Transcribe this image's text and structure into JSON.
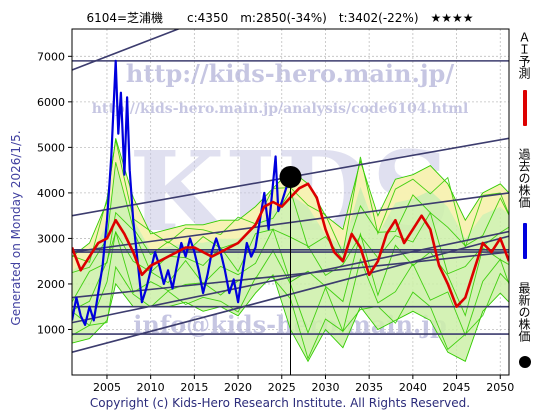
{
  "header": {
    "title": "6104=芝浦機　　c:4350　m:2850(-34%)　t:3402(-22%)　★★★★"
  },
  "footer": {
    "copyright": "Copyright (c) Kids-Hero Research Institute. All Rights Reserved."
  },
  "side": {
    "generated": "Generated on Monday 2026/1/5."
  },
  "legend": [
    {
      "label": "ＡＩ予測",
      "color": "#dd0000"
    },
    {
      "label": "過去の株価",
      "color": "#0000dd"
    },
    {
      "label": "最新の株価",
      "color": "#000000"
    }
  ],
  "watermarks": {
    "main": "http://kids-hero.main.jp/",
    "analysis": "http://kids-hero.main.jp/analysis/code6104.html",
    "mail": "info@kids-hero.main.jp",
    "big": "KIDS"
  },
  "colors": {
    "ai_line": "#dd0000",
    "past_line": "#0000dd",
    "band_green": "#33cc00",
    "band_fill_green": "#ccf0a8",
    "band_fill_yellow": "#fbf2b4",
    "trend_line": "#3c3c6e",
    "grid": "#bfbfbf"
  },
  "chart_data": {
    "type": "line",
    "x_axis": {
      "min": 2001,
      "max": 2051,
      "ticks": [
        2005,
        2010,
        2015,
        2020,
        2025,
        2030,
        2035,
        2040,
        2045,
        2050
      ]
    },
    "y_axis": {
      "min": 0,
      "max": 7600,
      "ticks": [
        1000,
        2000,
        3000,
        4000,
        5000,
        6000,
        7000
      ]
    },
    "grid": true,
    "latest_point": {
      "x": 2026.0,
      "y": 4350,
      "label": "c:4350"
    },
    "targets": {
      "m": 2850,
      "t": 3402
    },
    "horizontal_levels": [
      6900,
      2750,
      2700,
      1500,
      900
    ],
    "trend_lines": [
      {
        "x0": 2001,
        "y0": 6700,
        "x1": 2051,
        "y1": 10400
      },
      {
        "x0": 2001,
        "y0": 3500,
        "x1": 2051,
        "y1": 5200
      },
      {
        "x0": 2001,
        "y0": 2700,
        "x1": 2051,
        "y1": 4000
      },
      {
        "x0": 2001,
        "y0": 500,
        "x1": 2051,
        "y1": 3050
      },
      {
        "x0": 2001,
        "y0": 1150,
        "x1": 2051,
        "y1": 3150
      },
      {
        "x0": 2001,
        "y0": 1700,
        "x1": 2051,
        "y1": 2700
      }
    ],
    "past_price": {
      "name": "過去の株価",
      "points": [
        [
          2001.0,
          1200
        ],
        [
          2001.5,
          1700
        ],
        [
          2002.0,
          1300
        ],
        [
          2002.5,
          1100
        ],
        [
          2003.0,
          1500
        ],
        [
          2003.5,
          1200
        ],
        [
          2004.0,
          1800
        ],
        [
          2004.5,
          2400
        ],
        [
          2005.0,
          3400
        ],
        [
          2005.5,
          4800
        ],
        [
          2006.0,
          6900
        ],
        [
          2006.3,
          5300
        ],
        [
          2006.6,
          6200
        ],
        [
          2007.0,
          4400
        ],
        [
          2007.3,
          6100
        ],
        [
          2007.6,
          4500
        ],
        [
          2008.0,
          3400
        ],
        [
          2008.5,
          2500
        ],
        [
          2009.0,
          1600
        ],
        [
          2009.5,
          1900
        ],
        [
          2010.0,
          2300
        ],
        [
          2010.5,
          2700
        ],
        [
          2011.0,
          2400
        ],
        [
          2011.5,
          2000
        ],
        [
          2012.0,
          2300
        ],
        [
          2012.5,
          1900
        ],
        [
          2013.0,
          2400
        ],
        [
          2013.5,
          2900
        ],
        [
          2014.0,
          2600
        ],
        [
          2014.5,
          3000
        ],
        [
          2015.0,
          2700
        ],
        [
          2015.5,
          2300
        ],
        [
          2016.0,
          1800
        ],
        [
          2016.5,
          2200
        ],
        [
          2017.0,
          2700
        ],
        [
          2017.5,
          3000
        ],
        [
          2018.0,
          2700
        ],
        [
          2018.5,
          2300
        ],
        [
          2019.0,
          1800
        ],
        [
          2019.5,
          2100
        ],
        [
          2020.0,
          1600
        ],
        [
          2020.3,
          2000
        ],
        [
          2020.7,
          2500
        ],
        [
          2021.0,
          2900
        ],
        [
          2021.5,
          2600
        ],
        [
          2022.0,
          2800
        ],
        [
          2022.5,
          3400
        ],
        [
          2023.0,
          4000
        ],
        [
          2023.5,
          3200
        ],
        [
          2024.0,
          4200
        ],
        [
          2024.3,
          4800
        ],
        [
          2024.6,
          3600
        ],
        [
          2025.0,
          3800
        ],
        [
          2025.5,
          4100
        ],
        [
          2026.0,
          4350
        ]
      ]
    },
    "ai_forecast": {
      "name": "ＡＩ予測",
      "points": [
        [
          2001.0,
          2800
        ],
        [
          2002.0,
          2300
        ],
        [
          2003.0,
          2600
        ],
        [
          2004.0,
          2900
        ],
        [
          2005.0,
          3000
        ],
        [
          2006.0,
          3400
        ],
        [
          2007.0,
          3100
        ],
        [
          2008.0,
          2700
        ],
        [
          2009.0,
          2200
        ],
        [
          2010.0,
          2400
        ],
        [
          2011.0,
          2500
        ],
        [
          2012.0,
          2600
        ],
        [
          2013.0,
          2700
        ],
        [
          2014.0,
          2800
        ],
        [
          2015.0,
          2800
        ],
        [
          2016.0,
          2700
        ],
        [
          2017.0,
          2600
        ],
        [
          2018.0,
          2700
        ],
        [
          2019.0,
          2800
        ],
        [
          2020.0,
          2900
        ],
        [
          2021.0,
          3100
        ],
        [
          2022.0,
          3300
        ],
        [
          2023.0,
          3700
        ],
        [
          2024.0,
          3800
        ],
        [
          2025.0,
          3700
        ],
        [
          2026.0,
          3900
        ],
        [
          2027.0,
          4100
        ],
        [
          2028.0,
          4200
        ],
        [
          2029.0,
          3900
        ],
        [
          2030.0,
          3200
        ],
        [
          2031.0,
          2700
        ],
        [
          2032.0,
          2500
        ],
        [
          2033.0,
          3100
        ],
        [
          2034.0,
          2800
        ],
        [
          2035.0,
          2200
        ],
        [
          2036.0,
          2500
        ],
        [
          2037.0,
          3100
        ],
        [
          2038.0,
          3400
        ],
        [
          2039.0,
          2900
        ],
        [
          2040.0,
          3200
        ],
        [
          2041.0,
          3500
        ],
        [
          2042.0,
          3200
        ],
        [
          2043.0,
          2400
        ],
        [
          2044.0,
          2000
        ],
        [
          2045.0,
          1500
        ],
        [
          2046.0,
          1700
        ],
        [
          2047.0,
          2300
        ],
        [
          2048.0,
          2900
        ],
        [
          2049.0,
          2700
        ],
        [
          2050.0,
          3000
        ],
        [
          2051.0,
          2500
        ]
      ]
    },
    "band": {
      "upper": [
        [
          2001,
          2600
        ],
        [
          2003,
          2900
        ],
        [
          2005,
          3800
        ],
        [
          2006,
          5200
        ],
        [
          2008,
          3900
        ],
        [
          2010,
          3100
        ],
        [
          2012,
          3200
        ],
        [
          2014,
          3300
        ],
        [
          2016,
          3300
        ],
        [
          2018,
          3400
        ],
        [
          2020,
          3400
        ],
        [
          2022,
          3700
        ],
        [
          2024,
          4100
        ],
        [
          2026,
          4500
        ],
        [
          2028,
          4200
        ],
        [
          2030,
          3500
        ],
        [
          2032,
          3200
        ],
        [
          2034,
          4700
        ],
        [
          2036,
          3500
        ],
        [
          2038,
          4300
        ],
        [
          2040,
          4400
        ],
        [
          2042,
          4600
        ],
        [
          2044,
          4200
        ],
        [
          2046,
          3400
        ],
        [
          2048,
          4000
        ],
        [
          2050,
          4200
        ],
        [
          2051,
          4000
        ]
      ],
      "lower": [
        [
          2001,
          700
        ],
        [
          2003,
          800
        ],
        [
          2005,
          1200
        ],
        [
          2006,
          2000
        ],
        [
          2008,
          1500
        ],
        [
          2010,
          1500
        ],
        [
          2012,
          1500
        ],
        [
          2014,
          1600
        ],
        [
          2016,
          1400
        ],
        [
          2018,
          1500
        ],
        [
          2020,
          1300
        ],
        [
          2022,
          1800
        ],
        [
          2024,
          2200
        ],
        [
          2026,
          1000
        ],
        [
          2028,
          300
        ],
        [
          2030,
          1000
        ],
        [
          2032,
          600
        ],
        [
          2034,
          1500
        ],
        [
          2036,
          1000
        ],
        [
          2038,
          1200
        ],
        [
          2040,
          1400
        ],
        [
          2042,
          1200
        ],
        [
          2044,
          500
        ],
        [
          2046,
          300
        ],
        [
          2048,
          1400
        ],
        [
          2050,
          1800
        ],
        [
          2051,
          1600
        ]
      ]
    }
  }
}
